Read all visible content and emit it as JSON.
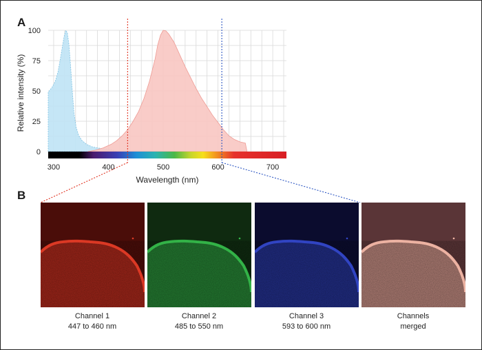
{
  "figure": {
    "panel_a_label": "A",
    "panel_b_label": "B"
  },
  "chart_data": {
    "type": "area",
    "xlabel": "Wavelength (nm)",
    "ylabel": "Relative intensity (%)",
    "xlim": [
      290,
      725
    ],
    "ylim": [
      0,
      100
    ],
    "x_ticks": [
      300,
      400,
      500,
      600,
      700
    ],
    "y_ticks": [
      0,
      25,
      50,
      75,
      100
    ],
    "grid": true,
    "series": [
      {
        "color": "#bfe3f5",
        "x": [
          290,
          297,
          303,
          308,
          312,
          316,
          319,
          322,
          325,
          328,
          331,
          334,
          337,
          341,
          346,
          352,
          360,
          370,
          380,
          390,
          400,
          410,
          415
        ],
        "y": [
          49,
          53,
          58,
          66,
          76,
          87,
          95,
          100,
          98,
          88,
          70,
          50,
          32,
          20,
          13,
          9,
          6,
          4,
          3,
          2.5,
          2,
          1,
          0
        ]
      },
      {
        "color": "#f8c6c2",
        "x": [
          362,
          375,
          390,
          405,
          415,
          425,
          435,
          445,
          455,
          465,
          475,
          485,
          490,
          495,
          500,
          505,
          510,
          520,
          530,
          540,
          550,
          560,
          570,
          580,
          590,
          600,
          610,
          620,
          630,
          640,
          650,
          653
        ],
        "y": [
          0,
          1,
          3,
          6,
          9,
          13,
          18,
          25,
          33,
          44,
          58,
          76,
          88,
          96,
          100,
          99.5,
          97,
          90,
          80,
          70,
          61,
          52,
          44,
          37,
          30,
          24,
          18,
          13,
          10,
          8,
          7,
          0
        ]
      }
    ],
    "spectrum_markers": [
      {
        "x": 435,
        "color": "#e0301e"
      },
      {
        "x": 607,
        "color": "#2b55c2"
      }
    ]
  },
  "panel_b": {
    "channels": [
      {
        "name": "Channel 1",
        "range": "447 to 460 nm",
        "tint": "#e13b26",
        "bg": "#4a0d09"
      },
      {
        "name": "Channel 2",
        "range": "485 to 550 nm",
        "tint": "#35b84a",
        "bg": "#0f2a10"
      },
      {
        "name": "Channel 3",
        "range": "593 to 600 nm",
        "tint": "#3347c8",
        "bg": "#0b0c2e"
      },
      {
        "name": "Channels",
        "range": "merged",
        "tint": "#f2b7a6",
        "bg": "#5a3537"
      }
    ]
  }
}
